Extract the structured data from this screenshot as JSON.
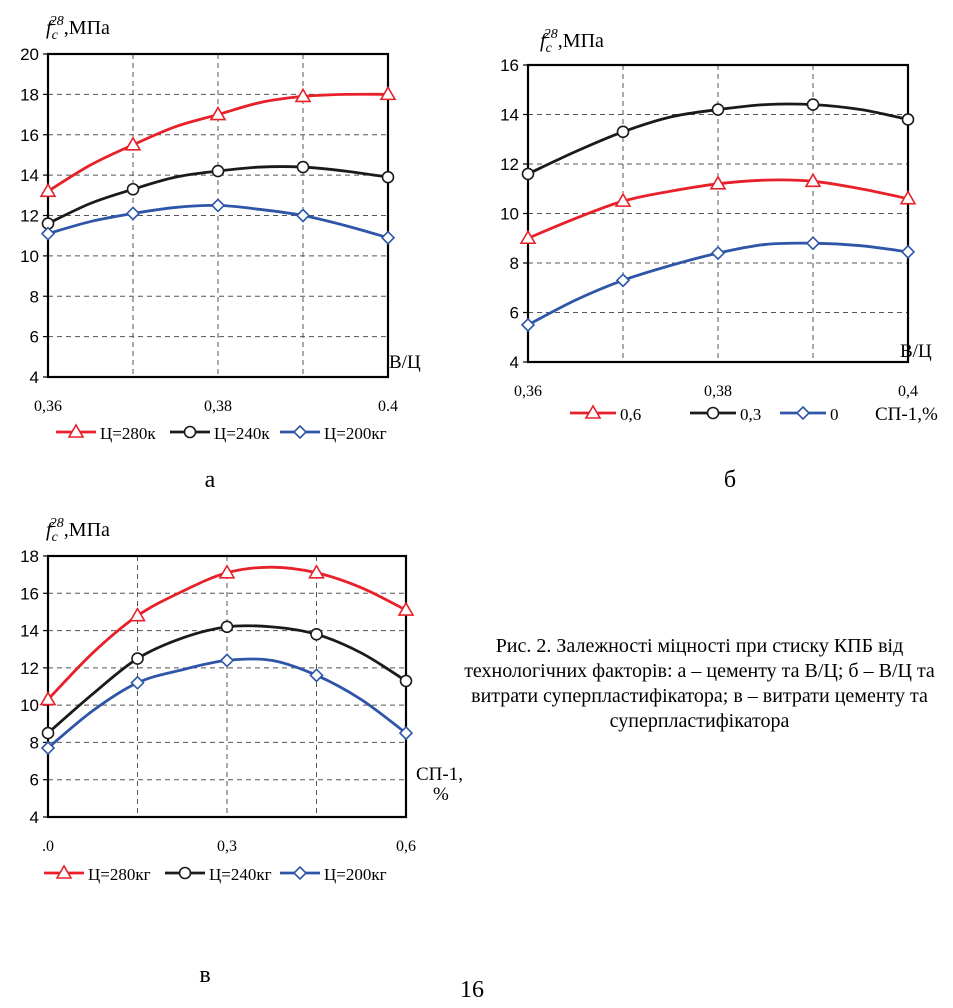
{
  "chart_data": [
    {
      "id": "a",
      "type": "line",
      "ylabel": "f_c^28,МПа",
      "ylabel_base": "f",
      "ylabel_sub": "c",
      "ylabel_sup": "28",
      "ylabel_unit": ",МПа",
      "xlabel": "В/Ц",
      "panel_label": "а",
      "x_ticks": [
        "0,36",
        "0,38",
        "0.4"
      ],
      "y_ticks": [
        "4",
        "6",
        "8",
        "10",
        "12",
        "14",
        "16",
        "18",
        "20"
      ],
      "xlim": [
        0.36,
        0.4
      ],
      "ylim": [
        4,
        20
      ],
      "grid": true,
      "legend_position": "bottom",
      "series": [
        {
          "name": "Ц=280к",
          "color": "#e8202a",
          "marker": "triangle",
          "x": [
            0.36,
            0.365,
            0.37,
            0.375,
            0.38,
            0.385,
            0.39,
            0.395,
            0.4
          ],
          "y": [
            13.2,
            14.5,
            15.5,
            16.4,
            17.0,
            17.6,
            17.9,
            18.0,
            18.0
          ],
          "marker_x": [
            0.36,
            0.37,
            0.38,
            0.39,
            0.4
          ],
          "marker_y": [
            13.2,
            15.5,
            17.0,
            17.9,
            18.0
          ]
        },
        {
          "name": "Ц=240к",
          "color": "#1a1a1a",
          "marker": "circle",
          "x": [
            0.36,
            0.365,
            0.37,
            0.375,
            0.38,
            0.385,
            0.39,
            0.395,
            0.4
          ],
          "y": [
            11.6,
            12.6,
            13.3,
            13.9,
            14.2,
            14.4,
            14.4,
            14.2,
            13.9
          ],
          "marker_x": [
            0.36,
            0.37,
            0.38,
            0.39,
            0.4
          ],
          "marker_y": [
            11.6,
            13.3,
            14.2,
            14.4,
            13.9
          ]
        },
        {
          "name": "Ц=200кг",
          "color": "#2e55a8",
          "marker": "diamond",
          "x": [
            0.36,
            0.365,
            0.37,
            0.375,
            0.38,
            0.385,
            0.39,
            0.395,
            0.4
          ],
          "y": [
            11.1,
            11.7,
            12.1,
            12.4,
            12.5,
            12.3,
            12.0,
            11.5,
            10.9
          ],
          "marker_x": [
            0.36,
            0.37,
            0.38,
            0.39,
            0.4
          ],
          "marker_y": [
            11.1,
            12.1,
            12.5,
            12.0,
            10.9
          ]
        }
      ]
    },
    {
      "id": "b",
      "type": "line",
      "ylabel": "f_c^28,МПа",
      "ylabel_base": "f",
      "ylabel_sub": "c",
      "ylabel_sup": "28",
      "ylabel_unit": ",МПа",
      "xlabel": "В/Ц",
      "panel_label": "б",
      "legend_title": "СП-1,%",
      "x_ticks": [
        "0,36",
        "0,38",
        "0,4"
      ],
      "y_ticks": [
        "4",
        "6",
        "8",
        "10",
        "12",
        "14",
        "16"
      ],
      "xlim": [
        0.36,
        0.4
      ],
      "ylim": [
        4,
        16
      ],
      "grid": true,
      "legend_position": "bottom",
      "series": [
        {
          "name": "0,6",
          "color": "#e8202a",
          "marker": "triangle",
          "x": [
            0.36,
            0.365,
            0.37,
            0.375,
            0.38,
            0.385,
            0.39,
            0.395,
            0.4
          ],
          "y": [
            9.0,
            9.8,
            10.5,
            10.9,
            11.2,
            11.35,
            11.3,
            11.0,
            10.6
          ],
          "marker_x": [
            0.36,
            0.37,
            0.38,
            0.39,
            0.4
          ],
          "marker_y": [
            9.0,
            10.5,
            11.2,
            11.3,
            10.6
          ]
        },
        {
          "name": "0,3",
          "color": "#1a1a1a",
          "marker": "circle",
          "x": [
            0.36,
            0.365,
            0.37,
            0.375,
            0.38,
            0.385,
            0.39,
            0.395,
            0.4
          ],
          "y": [
            11.6,
            12.5,
            13.3,
            13.9,
            14.2,
            14.4,
            14.4,
            14.2,
            13.8
          ],
          "marker_x": [
            0.36,
            0.37,
            0.38,
            0.39,
            0.4
          ],
          "marker_y": [
            11.6,
            13.3,
            14.2,
            14.4,
            13.8
          ]
        },
        {
          "name": "0",
          "color": "#2e55a8",
          "marker": "diamond",
          "x": [
            0.36,
            0.365,
            0.37,
            0.375,
            0.38,
            0.385,
            0.39,
            0.395,
            0.4
          ],
          "y": [
            5.5,
            6.5,
            7.3,
            7.9,
            8.4,
            8.75,
            8.8,
            8.7,
            8.45
          ],
          "marker_x": [
            0.36,
            0.37,
            0.38,
            0.39,
            0.4
          ],
          "marker_y": [
            5.5,
            7.3,
            8.4,
            8.8,
            8.45
          ]
        }
      ]
    },
    {
      "id": "c",
      "type": "line",
      "ylabel": "f_c^28,МПа",
      "ylabel_base": "f",
      "ylabel_sub": "c",
      "ylabel_sup": "28",
      "ylabel_unit": ",МПа",
      "xlabel": "СП-1,%",
      "xlabel_line1": "СП-1,",
      "xlabel_line2": "%",
      "panel_label": "в",
      "x_ticks": [
        ".0",
        "0,3",
        "0,6"
      ],
      "y_ticks": [
        "4",
        "6",
        "8",
        "10",
        "12",
        "14",
        "16",
        "18"
      ],
      "xlim": [
        0,
        0.6
      ],
      "ylim": [
        4,
        18
      ],
      "grid": true,
      "legend_position": "bottom",
      "series": [
        {
          "name": "Ц=280кг",
          "color": "#e8202a",
          "marker": "triangle",
          "x": [
            0,
            0.075,
            0.15,
            0.225,
            0.3,
            0.375,
            0.45,
            0.525,
            0.6
          ],
          "y": [
            10.3,
            12.8,
            14.8,
            16.1,
            17.1,
            17.4,
            17.1,
            16.3,
            15.1
          ],
          "marker_x": [
            0,
            0.15,
            0.3,
            0.45,
            0.6
          ],
          "marker_y": [
            10.3,
            14.8,
            17.1,
            17.1,
            15.1
          ]
        },
        {
          "name": "Ц=240кг",
          "color": "#1a1a1a",
          "marker": "circle",
          "x": [
            0,
            0.075,
            0.15,
            0.225,
            0.3,
            0.375,
            0.45,
            0.525,
            0.6
          ],
          "y": [
            8.5,
            10.6,
            12.5,
            13.6,
            14.2,
            14.2,
            13.8,
            12.8,
            11.3
          ],
          "marker_x": [
            0,
            0.15,
            0.3,
            0.45,
            0.6
          ],
          "marker_y": [
            8.5,
            12.5,
            14.2,
            13.8,
            11.3
          ]
        },
        {
          "name": "Ц=200кг",
          "color": "#2e55a8",
          "marker": "diamond",
          "x": [
            0,
            0.075,
            0.15,
            0.225,
            0.3,
            0.375,
            0.45,
            0.525,
            0.6
          ],
          "y": [
            7.7,
            9.7,
            11.2,
            11.9,
            12.4,
            12.4,
            11.6,
            10.3,
            8.5
          ],
          "marker_x": [
            0,
            0.15,
            0.3,
            0.45,
            0.6
          ],
          "marker_y": [
            7.7,
            11.2,
            12.4,
            11.6,
            8.5
          ]
        }
      ]
    }
  ],
  "caption": "Рис. 2. Залежності міцності при стиску КПБ від технологічних факторів: а – цементу та В/Ц; б – В/Ц та витрати суперпластифікатора; в – витрати цементу та суперпластифікатора",
  "page_number": "16"
}
